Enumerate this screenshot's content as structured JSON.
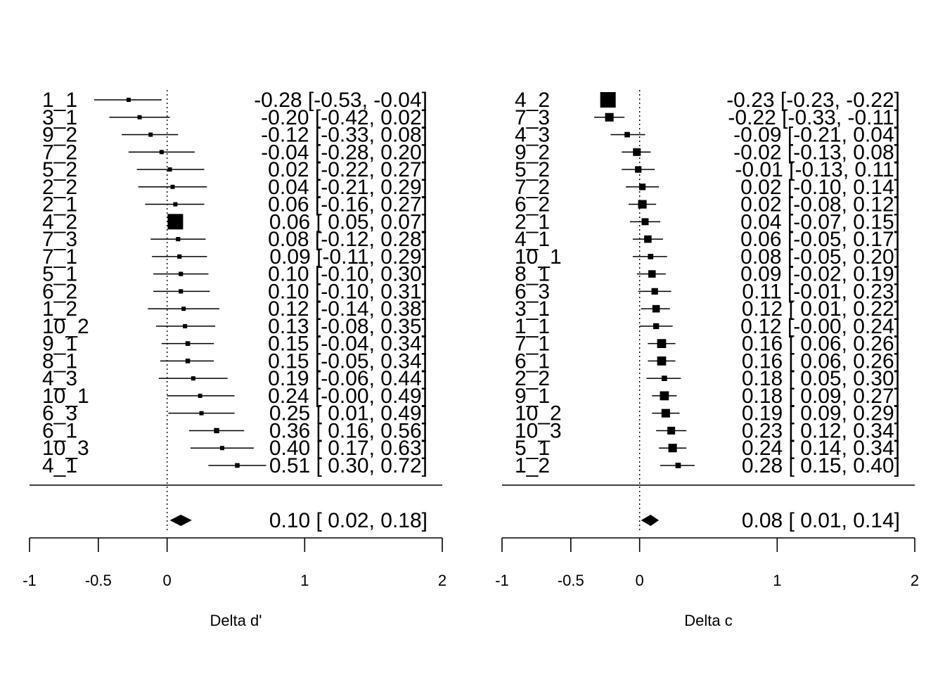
{
  "chart_data": [
    {
      "type": "forest",
      "xlabel": "Delta d'",
      "xticks": [
        "-1",
        "-0.5",
        "0",
        "1",
        "2"
      ],
      "xtick_values": [
        -1,
        -0.5,
        0,
        1,
        2
      ],
      "xlim": [
        -1,
        2
      ],
      "reference_line": 0,
      "studies": [
        {
          "label": "1_1",
          "est": -0.28,
          "lo": -0.53,
          "hi": -0.04,
          "text": "-0.28 [-0.53, -0.04]",
          "weight": 0.18
        },
        {
          "label": "3_1",
          "est": -0.2,
          "lo": -0.42,
          "hi": 0.02,
          "text": "-0.20 [-0.42,  0.02]",
          "weight": 0.24
        },
        {
          "label": "9_2",
          "est": -0.12,
          "lo": -0.33,
          "hi": 0.08,
          "text": "-0.12 [-0.33,  0.08]",
          "weight": 0.26
        },
        {
          "label": "7_2",
          "est": -0.04,
          "lo": -0.28,
          "hi": 0.2,
          "text": "-0.04 [-0.28,  0.20]",
          "weight": 0.22
        },
        {
          "label": "5_2",
          "est": 0.02,
          "lo": -0.22,
          "hi": 0.27,
          "text": "0.02 [-0.22,  0.27]",
          "weight": 0.22
        },
        {
          "label": "2_2",
          "est": 0.04,
          "lo": -0.21,
          "hi": 0.29,
          "text": "0.04 [-0.21,  0.29]",
          "weight": 0.2
        },
        {
          "label": "2_1",
          "est": 0.06,
          "lo": -0.16,
          "hi": 0.27,
          "text": "0.06 [-0.16,  0.27]",
          "weight": 0.24
        },
        {
          "label": "4_2",
          "est": 0.06,
          "lo": 0.05,
          "hi": 0.07,
          "text": "0.06 [ 0.05,  0.07]",
          "weight": 1.0
        },
        {
          "label": "7_3",
          "est": 0.08,
          "lo": -0.12,
          "hi": 0.28,
          "text": "0.08 [-0.12,  0.28]",
          "weight": 0.28
        },
        {
          "label": "7_1",
          "est": 0.09,
          "lo": -0.11,
          "hi": 0.29,
          "text": "0.09 [-0.11,  0.29]",
          "weight": 0.28
        },
        {
          "label": "5_1",
          "est": 0.1,
          "lo": -0.1,
          "hi": 0.3,
          "text": "0.10 [-0.10,  0.30]",
          "weight": 0.28
        },
        {
          "label": "6_2",
          "est": 0.1,
          "lo": -0.1,
          "hi": 0.31,
          "text": "0.10 [-0.10,  0.31]",
          "weight": 0.28
        },
        {
          "label": "1_2",
          "est": 0.12,
          "lo": -0.14,
          "hi": 0.38,
          "text": "0.12 [-0.14,  0.38]",
          "weight": 0.18
        },
        {
          "label": "10_2",
          "est": 0.13,
          "lo": -0.08,
          "hi": 0.35,
          "text": "0.13 [-0.08,  0.35]",
          "weight": 0.26
        },
        {
          "label": "9_1",
          "est": 0.15,
          "lo": -0.04,
          "hi": 0.34,
          "text": "0.15 [-0.04,  0.34]",
          "weight": 0.3
        },
        {
          "label": "8_1",
          "est": 0.15,
          "lo": -0.05,
          "hi": 0.34,
          "text": "0.15 [-0.05,  0.34]",
          "weight": 0.3
        },
        {
          "label": "4_3",
          "est": 0.19,
          "lo": -0.06,
          "hi": 0.44,
          "text": "0.19 [-0.06,  0.44]",
          "weight": 0.2
        },
        {
          "label": "10_1",
          "est": 0.24,
          "lo": -0.0,
          "hi": 0.49,
          "text": "0.24 [-0.00,  0.49]",
          "weight": 0.2
        },
        {
          "label": "6_3",
          "est": 0.25,
          "lo": 0.01,
          "hi": 0.49,
          "text": "0.25 [ 0.01,  0.49]",
          "weight": 0.22
        },
        {
          "label": "6_1",
          "est": 0.36,
          "lo": 0.16,
          "hi": 0.56,
          "text": "0.36 [ 0.16,  0.56]",
          "weight": 0.34
        },
        {
          "label": "10_3",
          "est": 0.4,
          "lo": 0.17,
          "hi": 0.63,
          "text": "0.40 [ 0.17,  0.63]",
          "weight": 0.24
        },
        {
          "label": "4_1",
          "est": 0.51,
          "lo": 0.3,
          "hi": 0.72,
          "text": "0.51 [ 0.30,  0.72]",
          "weight": 0.3
        }
      ],
      "summary": {
        "est": 0.1,
        "lo": 0.02,
        "hi": 0.18,
        "text": "0.10 [ 0.02,  0.18]"
      }
    },
    {
      "type": "forest",
      "xlabel": "Delta c",
      "xticks": [
        "-1",
        "-0.5",
        "0",
        "1",
        "2"
      ],
      "xtick_values": [
        -1,
        -0.5,
        0,
        1,
        2
      ],
      "xlim": [
        -1,
        2
      ],
      "reference_line": 0,
      "studies": [
        {
          "label": "4_2",
          "est": -0.23,
          "lo": -0.23,
          "hi": -0.22,
          "text": "-0.23 [-0.23, -0.22]",
          "weight": 1.0
        },
        {
          "label": "7_3",
          "est": -0.22,
          "lo": -0.33,
          "hi": -0.11,
          "text": "-0.22 [-0.33, -0.11]",
          "weight": 0.55
        },
        {
          "label": "4_3",
          "est": -0.09,
          "lo": -0.21,
          "hi": 0.04,
          "text": "-0.09 [-0.21,  0.04]",
          "weight": 0.35
        },
        {
          "label": "9_2",
          "est": -0.02,
          "lo": -0.13,
          "hi": 0.08,
          "text": "-0.02 [-0.13,  0.08]",
          "weight": 0.5
        },
        {
          "label": "5_2",
          "est": -0.01,
          "lo": -0.13,
          "hi": 0.11,
          "text": "-0.01 [-0.13,  0.11]",
          "weight": 0.42
        },
        {
          "label": "7_2",
          "est": 0.02,
          "lo": -0.1,
          "hi": 0.14,
          "text": "0.02 [-0.10,  0.14]",
          "weight": 0.42
        },
        {
          "label": "6_2",
          "est": 0.02,
          "lo": -0.08,
          "hi": 0.12,
          "text": "0.02 [-0.08,  0.12]",
          "weight": 0.55
        },
        {
          "label": "2_1",
          "est": 0.04,
          "lo": -0.07,
          "hi": 0.15,
          "text": "0.04 [-0.07,  0.15]",
          "weight": 0.45
        },
        {
          "label": "4_1",
          "est": 0.06,
          "lo": -0.05,
          "hi": 0.17,
          "text": "0.06 [-0.05,  0.17]",
          "weight": 0.48
        },
        {
          "label": "10_1",
          "est": 0.08,
          "lo": -0.05,
          "hi": 0.2,
          "text": "0.08 [-0.05,  0.20]",
          "weight": 0.35
        },
        {
          "label": "8_1",
          "est": 0.09,
          "lo": -0.02,
          "hi": 0.19,
          "text": "0.09 [-0.02,  0.19]",
          "weight": 0.48
        },
        {
          "label": "6_3",
          "est": 0.11,
          "lo": -0.01,
          "hi": 0.23,
          "text": "0.11 [-0.01,  0.23]",
          "weight": 0.42
        },
        {
          "label": "3_1",
          "est": 0.12,
          "lo": 0.01,
          "hi": 0.22,
          "text": "0.12 [ 0.01,  0.22]",
          "weight": 0.48
        },
        {
          "label": "1_1",
          "est": 0.12,
          "lo": -0.0,
          "hi": 0.24,
          "text": "0.12 [-0.00,  0.24]",
          "weight": 0.38
        },
        {
          "label": "7_1",
          "est": 0.16,
          "lo": 0.06,
          "hi": 0.26,
          "text": "0.16 [ 0.06,  0.26]",
          "weight": 0.58
        },
        {
          "label": "6_1",
          "est": 0.16,
          "lo": 0.06,
          "hi": 0.26,
          "text": "0.16 [ 0.06,  0.26]",
          "weight": 0.58
        },
        {
          "label": "2_2",
          "est": 0.18,
          "lo": 0.05,
          "hi": 0.3,
          "text": "0.18 [ 0.05,  0.30]",
          "weight": 0.35
        },
        {
          "label": "9_1",
          "est": 0.18,
          "lo": 0.09,
          "hi": 0.27,
          "text": "0.18 [ 0.09,  0.27]",
          "weight": 0.58
        },
        {
          "label": "10_2",
          "est": 0.19,
          "lo": 0.09,
          "hi": 0.29,
          "text": "0.19 [ 0.09,  0.29]",
          "weight": 0.55
        },
        {
          "label": "10_3",
          "est": 0.23,
          "lo": 0.12,
          "hi": 0.34,
          "text": "0.23 [ 0.12,  0.34]",
          "weight": 0.5
        },
        {
          "label": "5_1",
          "est": 0.24,
          "lo": 0.14,
          "hi": 0.34,
          "text": "0.24 [ 0.14,  0.34]",
          "weight": 0.55
        },
        {
          "label": "1_2",
          "est": 0.28,
          "lo": 0.15,
          "hi": 0.4,
          "text": "0.28 [ 0.15,  0.40]",
          "weight": 0.35
        }
      ],
      "summary": {
        "est": 0.08,
        "lo": 0.01,
        "hi": 0.14,
        "text": "0.08 [ 0.01,  0.14]"
      }
    }
  ]
}
